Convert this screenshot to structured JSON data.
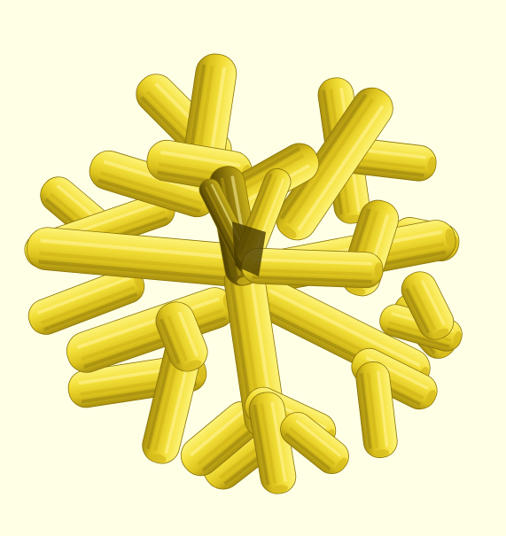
{
  "scene": {
    "background": "#ffffe5",
    "object": "branching-star-model",
    "model_colors": {
      "light": "#f7e74a",
      "mid": "#e4cc24",
      "dark": "#6e5c04",
      "shadow": "#3b3000"
    }
  }
}
